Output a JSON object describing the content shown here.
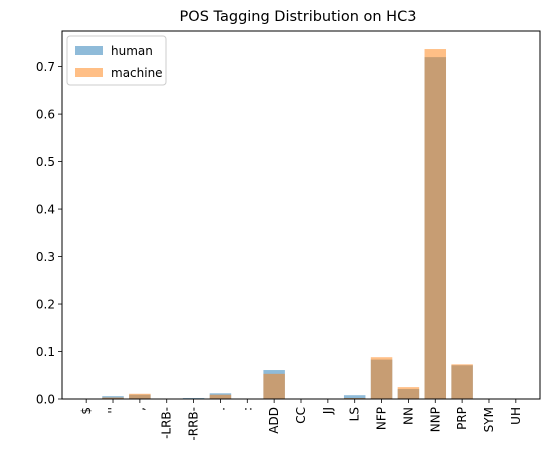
{
  "chart_data": {
    "type": "bar",
    "title": "POS Tagging Distribution on HC3",
    "xlabel": "",
    "ylabel": "",
    "categories": [
      "$",
      "''",
      ",",
      "-LRB-",
      "-RRB-",
      ".",
      ":",
      "ADD",
      "CC",
      "JJ",
      "LS",
      "NFP",
      "NN",
      "NNP",
      "PRP",
      "SYM",
      "UH"
    ],
    "series": [
      {
        "name": "human",
        "color": "#1f77b4",
        "opacity": 0.5,
        "values": [
          0.001,
          0.006,
          0.009,
          0.001,
          0.002,
          0.012,
          0.001,
          0.061,
          0.001,
          0.001,
          0.008,
          0.083,
          0.021,
          0.72,
          0.071,
          0.0005,
          0.0005
        ]
      },
      {
        "name": "machine",
        "color": "#ff7f0e",
        "opacity": 0.5,
        "values": [
          0.0005,
          0.003,
          0.011,
          0.0005,
          0.001,
          0.009,
          0.0005,
          0.053,
          0.0005,
          0.0005,
          0.002,
          0.088,
          0.025,
          0.737,
          0.073,
          0.0005,
          0.0005
        ]
      }
    ],
    "ylim": [
      0,
      0.775
    ],
    "yticks": [
      "0.0",
      "0.1",
      "0.2",
      "0.3",
      "0.4",
      "0.5",
      "0.6",
      "0.7"
    ],
    "grid": false,
    "legend": "top-left"
  }
}
